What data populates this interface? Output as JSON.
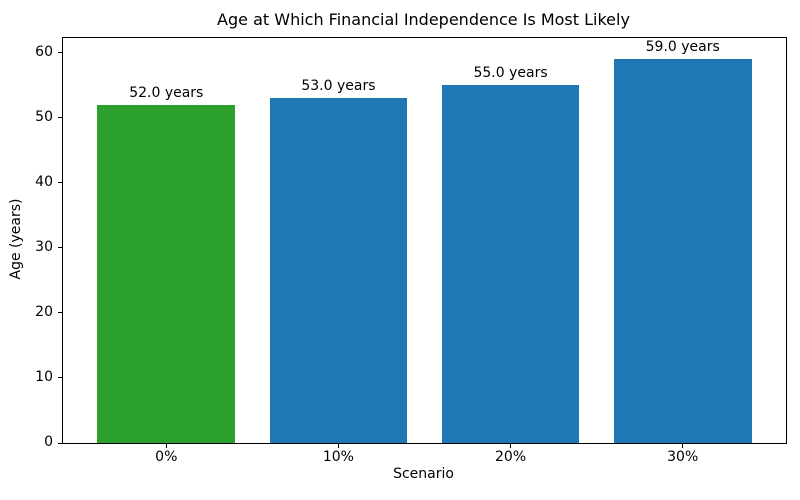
{
  "figure": {
    "background": "#ffffff",
    "text_color": "#000000"
  },
  "chart_data": {
    "type": "bar",
    "title": "Age at Which Financial Independence Is Most Likely",
    "xlabel": "Scenario",
    "ylabel": "Age (years)",
    "categories": [
      "0%",
      "10%",
      "20%",
      "30%"
    ],
    "values": [
      52.0,
      53.0,
      55.0,
      59.0
    ],
    "bar_labels": [
      "52.0 years",
      "53.0 years",
      "55.0 years",
      "59.0 years"
    ],
    "bar_colors": [
      "#2ca02c",
      "#1f77b4",
      "#1f77b4",
      "#1f77b4"
    ],
    "yticks": [
      0,
      10,
      20,
      30,
      40,
      50,
      60
    ],
    "ylim": [
      0,
      62.3
    ],
    "xlim": [
      -0.6,
      3.6
    ],
    "bar_width": 0.8,
    "grid": false,
    "legend": null
  }
}
